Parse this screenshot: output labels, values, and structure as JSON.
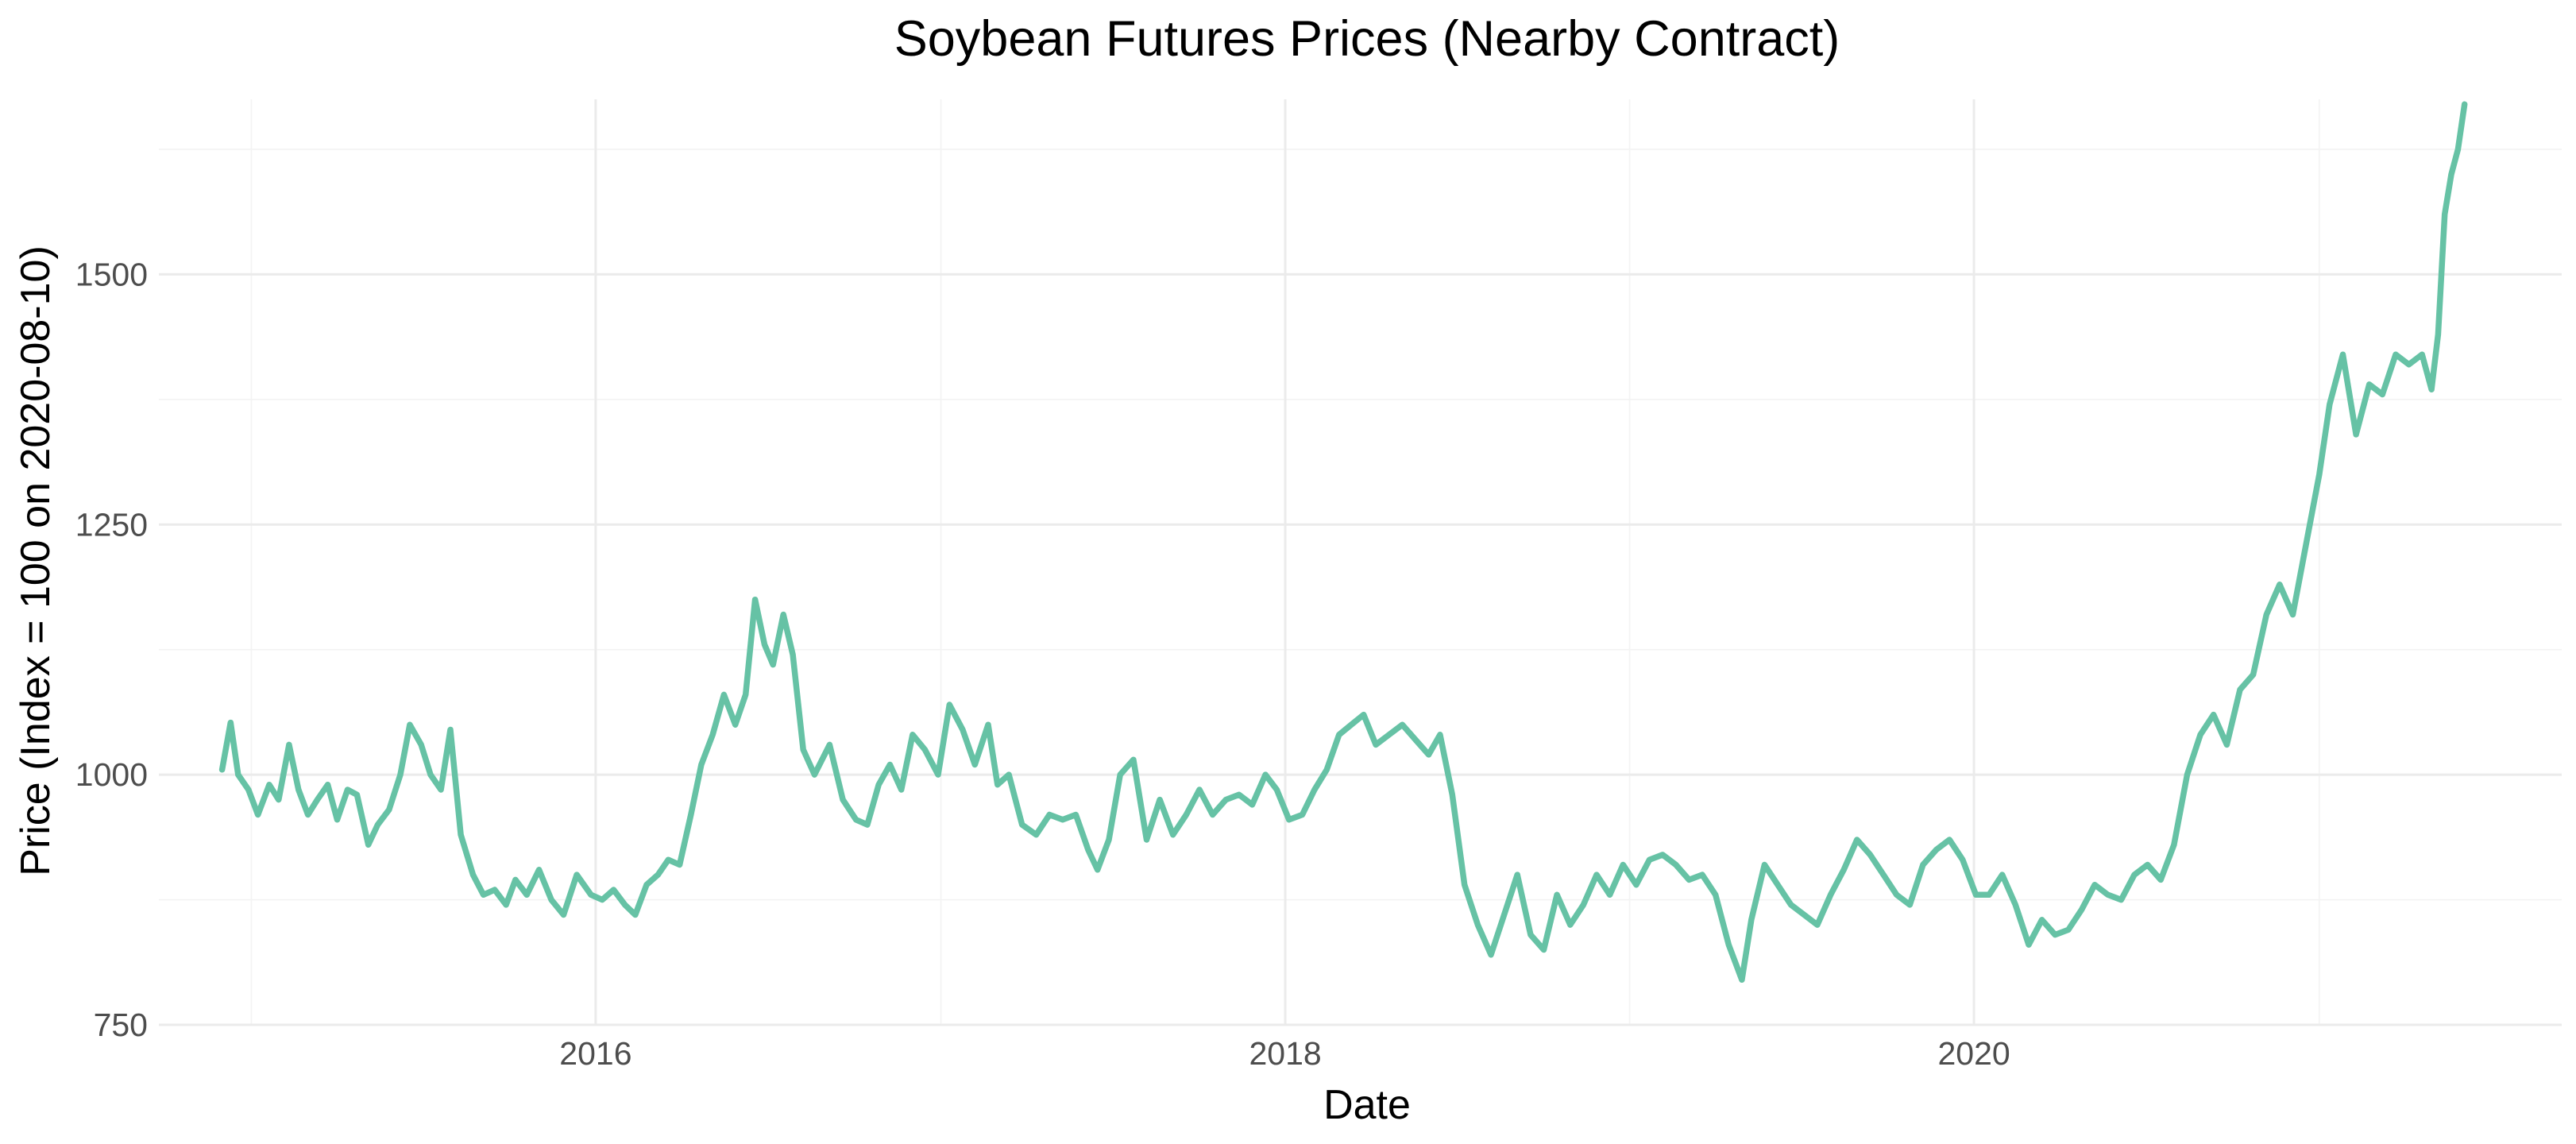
{
  "chart_data": {
    "type": "line",
    "title": "Soybean Futures Prices (Nearby Contract)",
    "xlabel": "Date",
    "ylabel": "Price (Index = 100 on 2020-08-10)",
    "x_ticks": [
      "2016",
      "2018",
      "2020"
    ],
    "y_ticks": [
      "750",
      "1000",
      "1250",
      "1500"
    ],
    "xlim": [
      "2014-09-25",
      "2021-09-15"
    ],
    "ylim": [
      750,
      1675
    ],
    "grid": true,
    "legend": "none",
    "color": "#66c2a5",
    "series": [
      {
        "x": [
          "2014-12-01",
          "2014-12-10",
          "2014-12-18",
          "2014-12-29",
          "2015-01-08",
          "2015-01-20",
          "2015-01-30",
          "2015-02-10",
          "2015-02-20",
          "2015-03-02",
          "2015-03-12",
          "2015-03-23",
          "2015-04-02",
          "2015-04-13",
          "2015-04-23",
          "2015-05-05",
          "2015-05-15",
          "2015-05-27",
          "2015-06-08",
          "2015-06-18",
          "2015-06-30",
          "2015-07-10",
          "2015-07-21",
          "2015-07-31",
          "2015-08-11",
          "2015-08-24",
          "2015-09-04",
          "2015-09-16",
          "2015-09-28",
          "2015-10-08",
          "2015-10-20",
          "2015-11-02",
          "2015-11-15",
          "2015-11-28",
          "2015-12-12",
          "2015-12-27",
          "2016-01-08",
          "2016-01-20",
          "2016-02-01",
          "2016-02-12",
          "2016-02-24",
          "2016-03-07",
          "2016-03-18",
          "2016-03-30",
          "2016-04-11",
          "2016-04-22",
          "2016-05-04",
          "2016-05-16",
          "2016-05-28",
          "2016-06-08",
          "2016-06-18",
          "2016-06-28",
          "2016-07-07",
          "2016-07-18",
          "2016-07-28",
          "2016-08-08",
          "2016-08-20",
          "2016-09-05",
          "2016-09-19",
          "2016-10-03",
          "2016-10-15",
          "2016-10-27",
          "2016-11-08",
          "2016-11-20",
          "2016-12-02",
          "2016-12-15",
          "2016-12-29",
          "2017-01-10",
          "2017-01-24",
          "2017-02-06",
          "2017-02-20",
          "2017-03-02",
          "2017-03-14",
          "2017-03-28",
          "2017-04-12",
          "2017-04-26",
          "2017-05-10",
          "2017-05-24",
          "2017-06-06",
          "2017-06-16",
          "2017-06-28",
          "2017-07-10",
          "2017-07-24",
          "2017-08-07",
          "2017-08-21",
          "2017-09-04",
          "2017-09-18",
          "2017-10-02",
          "2017-10-16",
          "2017-10-30",
          "2017-11-13",
          "2017-11-27",
          "2017-12-11",
          "2017-12-23",
          "2018-01-05",
          "2018-01-19",
          "2018-02-01",
          "2018-02-14",
          "2018-02-27",
          "2018-03-12",
          "2018-03-25",
          "2018-04-07",
          "2018-04-21",
          "2018-05-05",
          "2018-05-19",
          "2018-06-02",
          "2018-06-14",
          "2018-06-27",
          "2018-07-10",
          "2018-07-24",
          "2018-08-07",
          "2018-08-21",
          "2018-09-04",
          "2018-09-18",
          "2018-10-02",
          "2018-10-16",
          "2018-10-30",
          "2018-11-13",
          "2018-11-27",
          "2018-12-11",
          "2018-12-25",
          "2019-01-08",
          "2019-01-22",
          "2019-02-05",
          "2019-02-19",
          "2019-03-05",
          "2019-03-19",
          "2019-04-02",
          "2019-04-16",
          "2019-04-30",
          "2019-05-10",
          "2019-05-24",
          "2019-06-07",
          "2019-06-21",
          "2019-07-05",
          "2019-07-19",
          "2019-08-02",
          "2019-08-16",
          "2019-08-30",
          "2019-09-13",
          "2019-09-27",
          "2019-10-11",
          "2019-10-25",
          "2019-11-08",
          "2019-11-22",
          "2019-12-06",
          "2019-12-20",
          "2020-01-03",
          "2020-01-17",
          "2020-01-31",
          "2020-02-14",
          "2020-02-28",
          "2020-03-13",
          "2020-03-27",
          "2020-04-10",
          "2020-04-24",
          "2020-05-08",
          "2020-05-22",
          "2020-06-05",
          "2020-06-19",
          "2020-07-03",
          "2020-07-17",
          "2020-07-31",
          "2020-08-14",
          "2020-08-28",
          "2020-09-11",
          "2020-09-25",
          "2020-10-09",
          "2020-10-23",
          "2020-11-06",
          "2020-11-20",
          "2020-12-04",
          "2020-12-18",
          "2021-01-01",
          "2021-01-12",
          "2021-01-26",
          "2021-02-09",
          "2021-02-23",
          "2021-03-09",
          "2021-03-23",
          "2021-04-06",
          "2021-04-20",
          "2021-04-30",
          "2021-05-07",
          "2021-05-14",
          "2021-05-21",
          "2021-05-28",
          "2021-06-04"
        ],
        "y": [
          1005,
          1052,
          1000,
          985,
          960,
          990,
          975,
          1030,
          985,
          960,
          975,
          990,
          955,
          985,
          980,
          930,
          950,
          965,
          1000,
          1050,
          1030,
          1000,
          985,
          1045,
          940,
          900,
          880,
          885,
          870,
          895,
          880,
          905,
          875,
          860,
          900,
          880,
          875,
          885,
          870,
          860,
          890,
          900,
          915,
          910,
          960,
          1010,
          1040,
          1080,
          1050,
          1080,
          1175,
          1130,
          1110,
          1160,
          1120,
          1025,
          1000,
          1030,
          975,
          955,
          950,
          990,
          1010,
          985,
          1040,
          1025,
          1000,
          1070,
          1045,
          1010,
          1050,
          990,
          1000,
          950,
          940,
          960,
          955,
          960,
          925,
          905,
          935,
          1000,
          1015,
          935,
          975,
          940,
          960,
          985,
          960,
          975,
          980,
          970,
          1000,
          985,
          955,
          960,
          985,
          1005,
          1040,
          1050,
          1060,
          1030,
          1040,
          1050,
          1035,
          1020,
          1040,
          980,
          890,
          850,
          820,
          860,
          900,
          840,
          825,
          880,
          850,
          870,
          900,
          880,
          910,
          890,
          915,
          920,
          910,
          895,
          900,
          880,
          830,
          795,
          855,
          910,
          890,
          870,
          860,
          850,
          880,
          905,
          935,
          920,
          900,
          880,
          870,
          910,
          925,
          935,
          915,
          880,
          880,
          900,
          870,
          830,
          855,
          840,
          845,
          865,
          890,
          880,
          875,
          900,
          910,
          895,
          930,
          1000,
          1040,
          1060,
          1030,
          1085,
          1100,
          1160,
          1190,
          1160,
          1230,
          1300,
          1370,
          1420,
          1340,
          1390,
          1380,
          1420,
          1410,
          1420,
          1385,
          1440,
          1560,
          1600,
          1625,
          1670
        ]
      }
    ]
  }
}
